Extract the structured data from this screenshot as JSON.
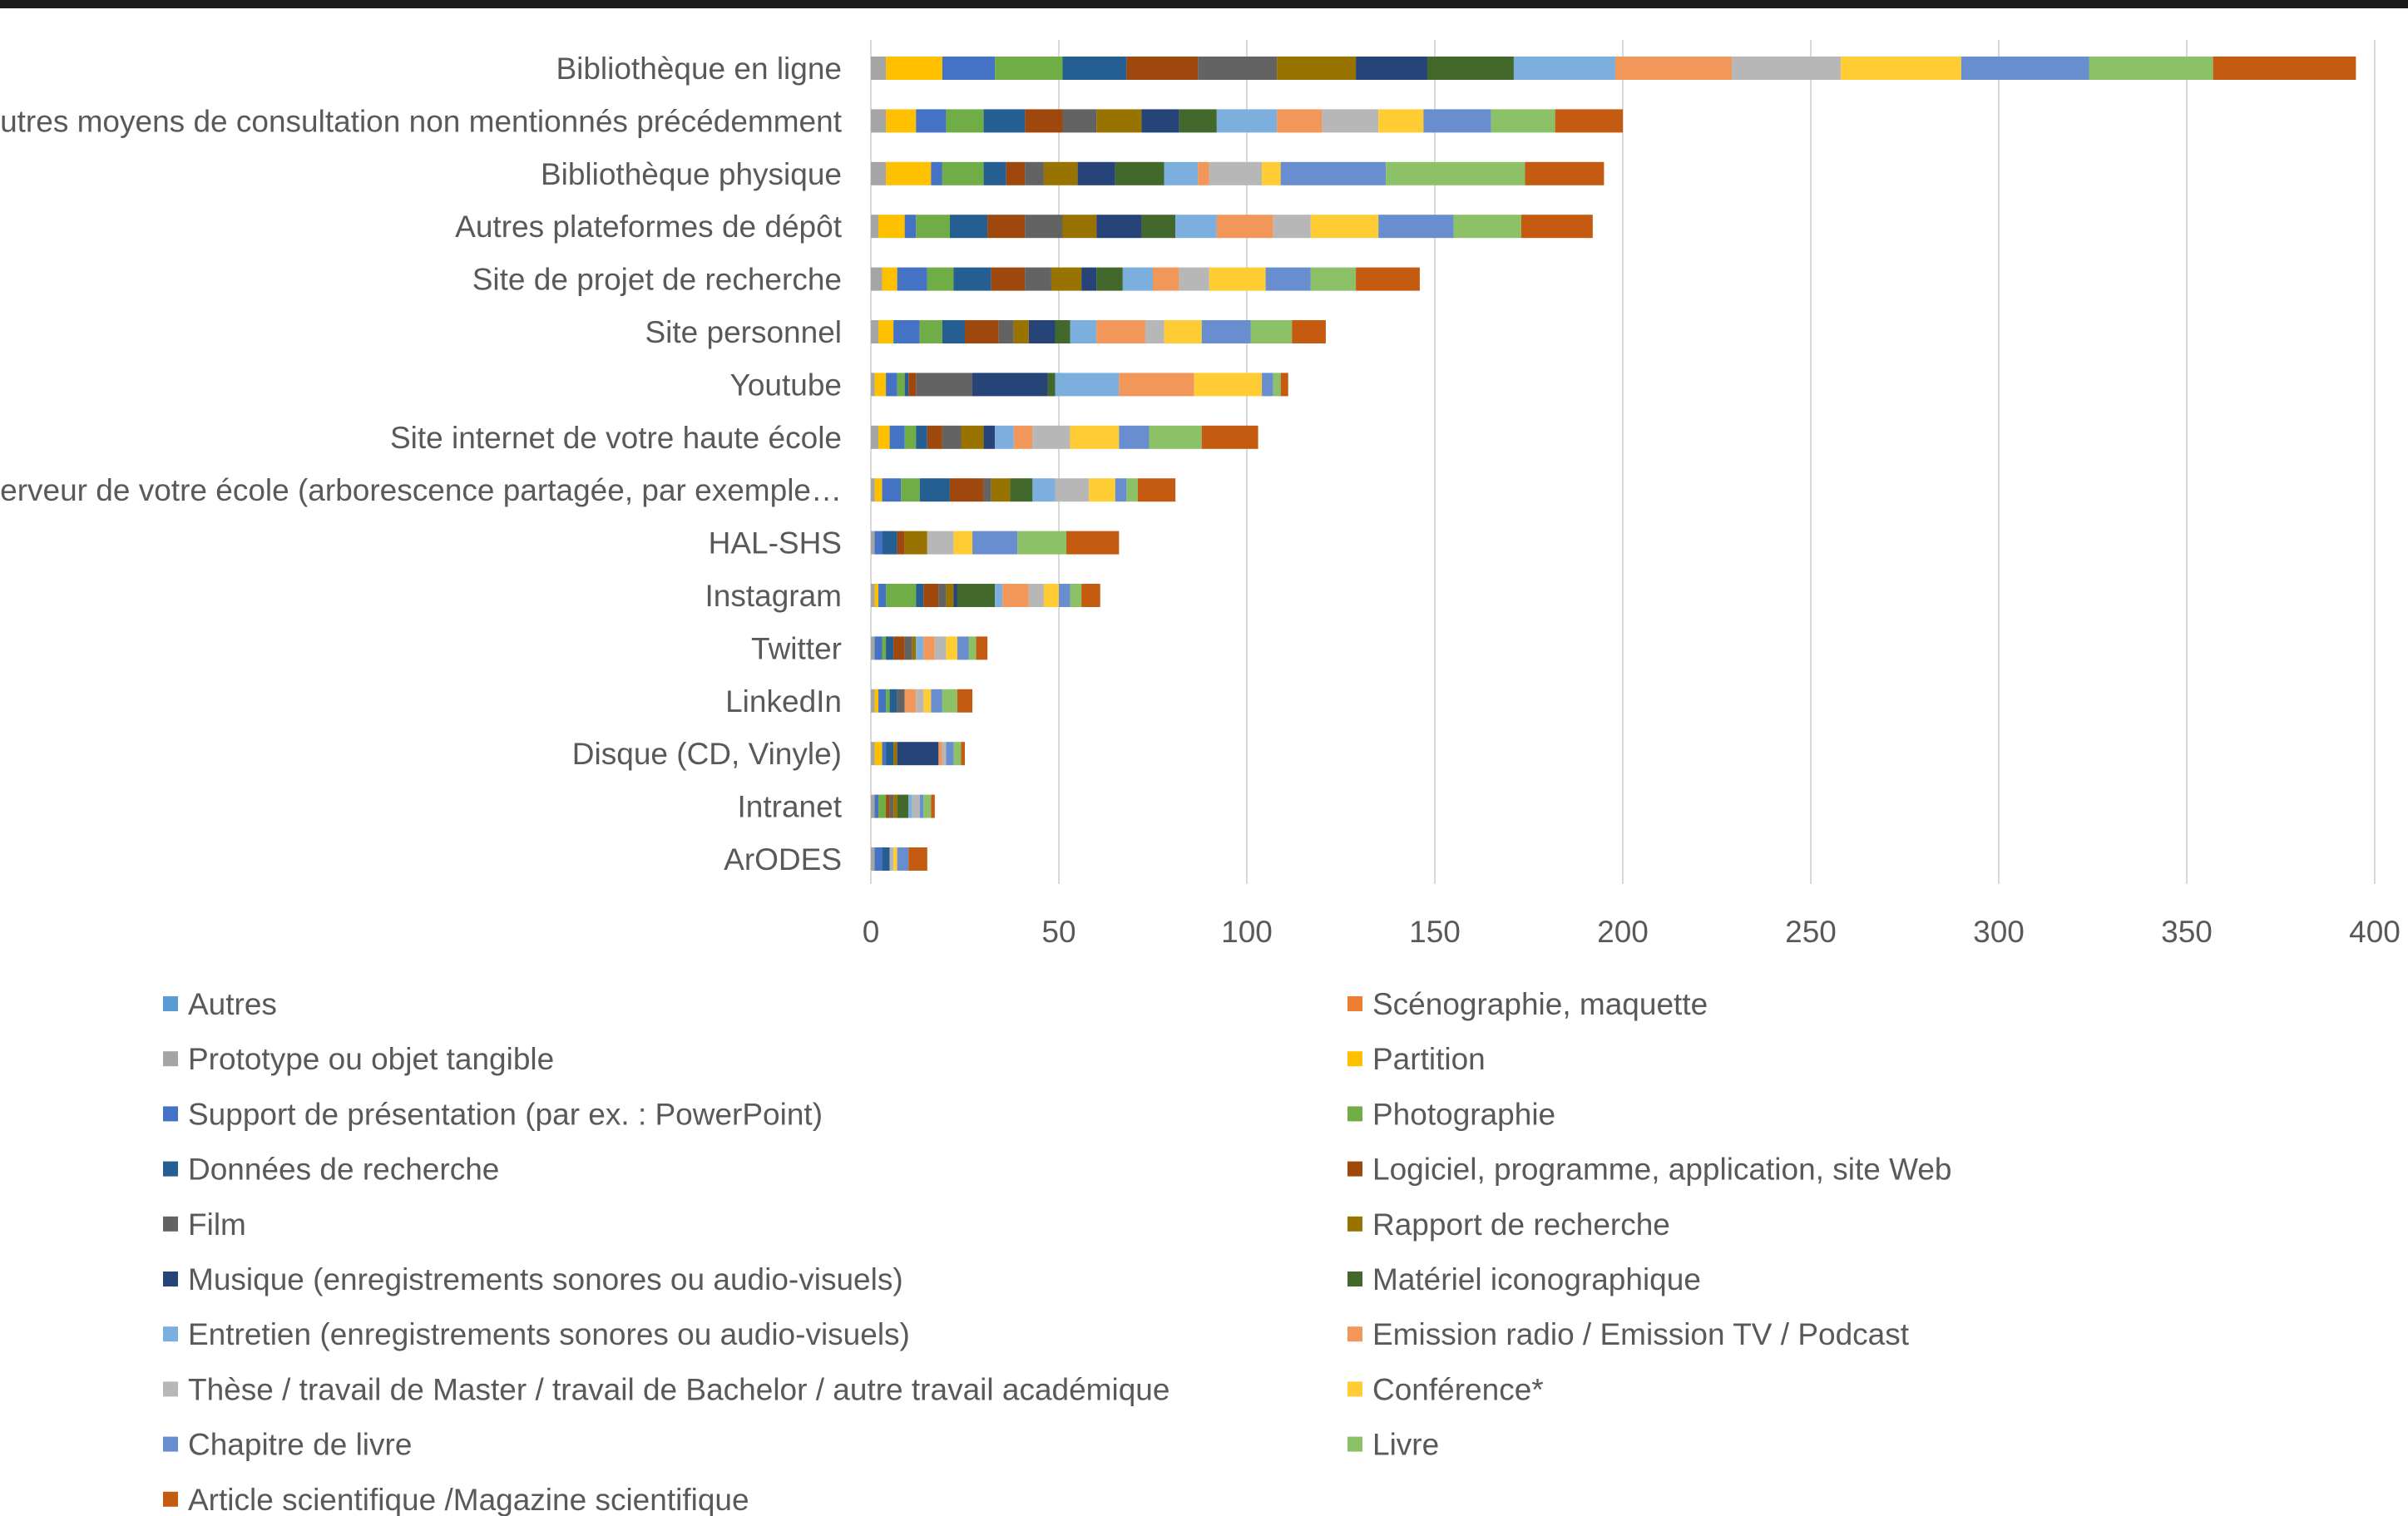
{
  "chart_data": {
    "type": "bar",
    "orientation": "horizontal",
    "stacked": true,
    "title": "",
    "xlabel": "",
    "ylabel": "",
    "xlim": [
      0,
      400
    ],
    "xticks": [
      0,
      50,
      100,
      150,
      200,
      250,
      300,
      350,
      400
    ],
    "grid": true,
    "legend_position": "bottom",
    "categories": [
      "Bibliothèque en ligne",
      "Autres moyens de consultation non mentionnés précédemment",
      "Bibliothèque physique",
      "Autres plateformes de dépôt",
      "Site de projet de recherche",
      "Site personnel",
      "Youtube",
      "Site internet de votre haute école",
      "Serveur de votre école (arborescence partagée, par exemple…",
      "HAL-SHS",
      "Instagram",
      "Twitter",
      "LinkedIn",
      "Disque (CD, Vinyle)",
      "Intranet",
      "ArODES"
    ],
    "series": [
      {
        "name": "Autres",
        "color": "#5b9bd5",
        "values": [
          0,
          0,
          0,
          0,
          0,
          0,
          0,
          0,
          0,
          0,
          0,
          0,
          0,
          0,
          0,
          0
        ]
      },
      {
        "name": "Scénographie, maquette",
        "color": "#ed7d31",
        "values": [
          0,
          0,
          0,
          0,
          0,
          0,
          0,
          0,
          0,
          0,
          0,
          0,
          0,
          0,
          0,
          0
        ]
      },
      {
        "name": "Prototype ou objet tangible",
        "color": "#a5a5a5",
        "values": [
          4,
          4,
          4,
          2,
          3,
          2,
          1,
          2,
          1,
          1,
          1,
          1,
          1,
          1,
          1,
          1
        ]
      },
      {
        "name": "Partition",
        "color": "#ffc000",
        "values": [
          15,
          8,
          12,
          7,
          4,
          4,
          3,
          3,
          2,
          0,
          1,
          0,
          1,
          2,
          0,
          0
        ]
      },
      {
        "name": "Support de présentation (par ex. : PowerPoint)",
        "color": "#4472c4",
        "values": [
          14,
          8,
          3,
          3,
          8,
          7,
          3,
          4,
          5,
          2,
          2,
          2,
          2,
          1,
          1,
          2
        ]
      },
      {
        "name": "Photographie",
        "color": "#70ad47",
        "values": [
          18,
          10,
          11,
          9,
          7,
          6,
          2,
          3,
          5,
          0,
          8,
          1,
          1,
          0,
          2,
          0
        ]
      },
      {
        "name": "Données de recherche",
        "color": "#255e91",
        "values": [
          17,
          11,
          6,
          10,
          10,
          6,
          1,
          3,
          8,
          4,
          2,
          2,
          2,
          2,
          0,
          2
        ]
      },
      {
        "name": "Logiciel, programme, application, site Web",
        "color": "#9e480e",
        "values": [
          19,
          10,
          5,
          10,
          9,
          9,
          2,
          4,
          9,
          2,
          4,
          3,
          0,
          0,
          1,
          0
        ]
      },
      {
        "name": "Film",
        "color": "#636363",
        "values": [
          21,
          9,
          5,
          10,
          7,
          4,
          15,
          5,
          2,
          0,
          2,
          2,
          2,
          0,
          1,
          0
        ]
      },
      {
        "name": "Rapport de recherche",
        "color": "#997300",
        "values": [
          21,
          12,
          9,
          9,
          8,
          4,
          0,
          6,
          5,
          6,
          2,
          1,
          0,
          1,
          1,
          0
        ]
      },
      {
        "name": "Musique (enregistrements sonores ou audio-visuels)",
        "color": "#264478",
        "values": [
          19,
          10,
          10,
          12,
          4,
          7,
          20,
          3,
          0,
          0,
          1,
          0,
          0,
          11,
          0,
          0
        ]
      },
      {
        "name": "Matériel iconographique",
        "color": "#43682b",
        "values": [
          23,
          10,
          13,
          9,
          7,
          4,
          2,
          0,
          6,
          0,
          10,
          0,
          0,
          0,
          3,
          0
        ]
      },
      {
        "name": "Entretien (enregistrements sonores ou audio-visuels)",
        "color": "#7cafdd",
        "values": [
          27,
          16,
          9,
          11,
          8,
          7,
          17,
          5,
          6,
          0,
          2,
          2,
          0,
          0,
          1,
          0
        ]
      },
      {
        "name": "Emission radio / Emission TV / Podcast",
        "color": "#f1975a",
        "values": [
          31,
          12,
          3,
          15,
          7,
          13,
          20,
          5,
          0,
          0,
          7,
          3,
          3,
          1,
          0,
          0
        ]
      },
      {
        "name": "Thèse / travail de Master / travail de Bachelor / autre travail académique",
        "color": "#b7b7b7",
        "values": [
          29,
          15,
          14,
          10,
          8,
          5,
          0,
          10,
          9,
          7,
          4,
          3,
          2,
          1,
          2,
          1
        ]
      },
      {
        "name": "Conférence*",
        "color": "#ffcd33",
        "values": [
          32,
          12,
          5,
          18,
          15,
          10,
          18,
          13,
          7,
          5,
          4,
          3,
          2,
          0,
          0,
          1
        ]
      },
      {
        "name": "Chapitre de livre",
        "color": "#698ed0",
        "values": [
          34,
          18,
          28,
          20,
          12,
          13,
          3,
          8,
          3,
          12,
          3,
          3,
          3,
          2,
          1,
          3
        ]
      },
      {
        "name": "Livre",
        "color": "#8cc168",
        "values": [
          33,
          17,
          37,
          18,
          12,
          11,
          2,
          14,
          3,
          13,
          3,
          2,
          4,
          2,
          2,
          0
        ]
      },
      {
        "name": "Article scientifique /Magazine scientifique",
        "color": "#c55a11",
        "values": [
          38,
          18,
          21,
          19,
          17,
          9,
          2,
          15,
          10,
          14,
          5,
          3,
          4,
          1,
          1,
          5
        ]
      }
    ]
  }
}
